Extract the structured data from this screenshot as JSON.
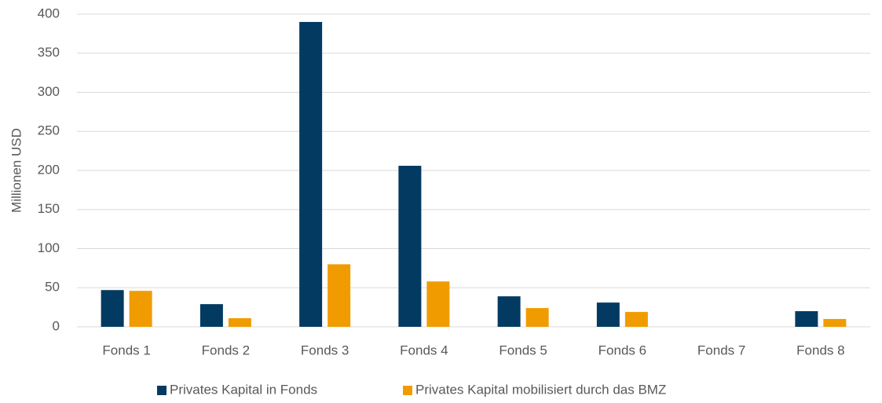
{
  "chart_data": {
    "type": "bar",
    "y_label": "Millionen USD",
    "categories": [
      "Fonds 1",
      "Fonds 2",
      "Fonds 3",
      "Fonds 4",
      "Fonds 5",
      "Fonds 6",
      "Fonds 7",
      "Fonds 8"
    ],
    "series": [
      {
        "name": "Privates Kapital in Fonds",
        "color": "#023a62",
        "values": [
          47,
          29,
          390,
          206,
          39,
          31,
          0,
          20
        ]
      },
      {
        "name": "Privates Kapital mobilisiert durch das BMZ",
        "color": "#f09c00",
        "values": [
          46,
          11,
          80,
          58,
          24,
          19,
          0,
          10
        ]
      }
    ],
    "ylim": [
      0,
      400
    ],
    "yticks": [
      0,
      50,
      100,
      150,
      200,
      250,
      300,
      350,
      400
    ],
    "grid": true,
    "legend": "bottom"
  }
}
